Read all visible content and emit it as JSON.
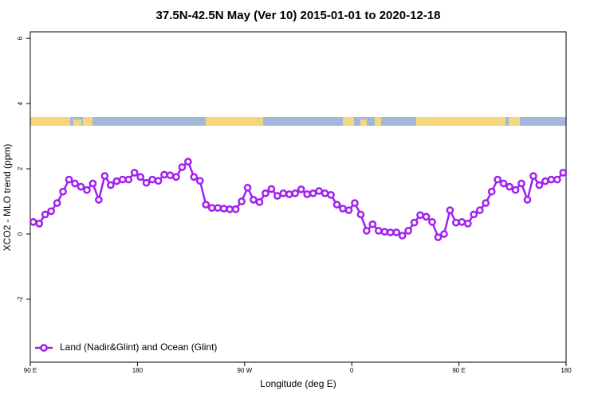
{
  "chart_data": {
    "type": "line",
    "title": "37.5N-42.5N May (Ver 10)   2015-01-01 to 2020-12-18",
    "xlabel": "Longitude (deg E)",
    "ylabel": "XCO2 - MLO trend (ppm)",
    "x": [
      92.5,
      97.5,
      102.5,
      107.5,
      112.5,
      117.5,
      122.5,
      127.5,
      132.5,
      137.5,
      142.5,
      147.5,
      152.5,
      157.5,
      162.5,
      167.5,
      172.5,
      177.5,
      182.5,
      187.5,
      192.5,
      197.5,
      202.5,
      207.5,
      212.5,
      217.5,
      222.5,
      227.5,
      232.5,
      237.5,
      242.5,
      247.5,
      252.5,
      257.5,
      262.5,
      267.5,
      272.5,
      277.5,
      282.5,
      287.5,
      292.5,
      297.5,
      302.5,
      307.5,
      312.5,
      317.5,
      322.5,
      327.5,
      332.5,
      337.5,
      342.5,
      347.5,
      352.5,
      357.5,
      362.5,
      367.5,
      372.5,
      377.5,
      382.5,
      387.5,
      392.5,
      397.5,
      402.5,
      407.5,
      412.5,
      417.5,
      422.5,
      427.5,
      432.5,
      437.5,
      442.5,
      447.5,
      452.5,
      457.5,
      462.5,
      467.5,
      472.5,
      477.5,
      482.5,
      487.5,
      492.5,
      497.5,
      502.5,
      507.5,
      512.5,
      517.5,
      522.5,
      527.5,
      532.5,
      537.5
    ],
    "series": [
      {
        "name": "Land (Nadir&Glint) and Ocean (Glint)",
        "color": "#a020f0",
        "values": [
          0.37,
          0.32,
          0.6,
          0.7,
          0.95,
          1.3,
          1.67,
          1.55,
          1.45,
          1.35,
          1.55,
          1.05,
          1.78,
          1.5,
          1.62,
          1.67,
          1.67,
          1.88,
          1.75,
          1.57,
          1.67,
          1.63,
          1.82,
          1.8,
          1.75,
          2.05,
          2.22,
          1.75,
          1.63,
          0.9,
          0.8,
          0.8,
          0.78,
          0.76,
          0.76,
          1.0,
          1.42,
          1.05,
          0.98,
          1.25,
          1.38,
          1.17,
          1.25,
          1.22,
          1.25,
          1.37,
          1.22,
          1.25,
          1.32,
          1.25,
          1.2,
          0.9,
          0.78,
          0.73,
          0.95,
          0.6,
          0.1,
          0.3,
          0.1,
          0.07,
          0.05,
          0.05,
          -0.05,
          0.1,
          0.35,
          0.58,
          0.53,
          0.37,
          -0.1,
          0,
          0.73,
          0.35,
          0.37,
          0.32,
          0.6,
          0.73,
          0.95,
          1.3,
          1.67,
          1.55,
          1.45,
          1.35,
          1.55,
          1.05,
          1.78,
          1.5,
          1.62,
          1.67,
          1.67,
          1.88
        ]
      }
    ],
    "xlim": [
      90,
      540
    ],
    "xticks": [
      {
        "value": 90,
        "label": "90 E"
      },
      180,
      {
        "value": 270,
        "label": "90 W"
      },
      {
        "value": 360,
        "label": "0"
      },
      {
        "value": 450,
        "label": "90 E"
      },
      {
        "value": 540,
        "label": "180"
      }
    ],
    "ylim": [
      -3.93,
      6.2
    ],
    "yticks": [
      -2,
      0,
      2,
      4,
      6
    ],
    "legend": "bottomleft"
  }
}
